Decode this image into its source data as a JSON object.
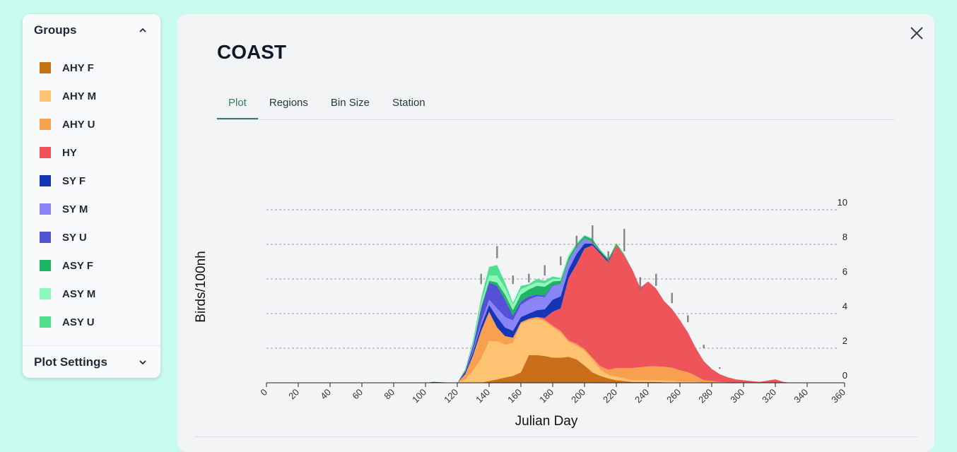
{
  "sidebar": {
    "groups_title": "Groups",
    "plot_settings_label": "Plot Settings",
    "groups": [
      {
        "label": "AHY F",
        "color": "#c96f1a"
      },
      {
        "label": "AHY M",
        "color": "#fec370"
      },
      {
        "label": "AHY U",
        "color": "#f9a050"
      },
      {
        "label": "HY",
        "color": "#ee5459"
      },
      {
        "label": "SY F",
        "color": "#1535b5"
      },
      {
        "label": "SY M",
        "color": "#8a85f5"
      },
      {
        "label": "SY U",
        "color": "#5550d8"
      },
      {
        "label": "ASY F",
        "color": "#1db565"
      },
      {
        "label": "ASY M",
        "color": "#8df8b8"
      },
      {
        "label": "ASY U",
        "color": "#50df8e"
      }
    ]
  },
  "panel": {
    "title": "COAST",
    "tabs": [
      "Plot",
      "Regions",
      "Bin Size",
      "Station"
    ],
    "active_tab": "Plot"
  },
  "chart_data": {
    "type": "area",
    "stacked": true,
    "xlabel": "Julian Day",
    "ylabel": "Birds/100nh",
    "xlim": [
      0,
      360
    ],
    "ylim": [
      0,
      10
    ],
    "x_ticks": [
      0,
      20,
      40,
      60,
      80,
      100,
      120,
      140,
      160,
      180,
      200,
      220,
      240,
      260,
      280,
      300,
      320,
      340,
      360
    ],
    "y_ticks": [
      0,
      2,
      4,
      6,
      8,
      10
    ],
    "grid": true,
    "x": [
      0,
      100,
      105,
      110,
      120,
      125,
      130,
      135,
      140,
      145,
      150,
      155,
      160,
      165,
      170,
      175,
      180,
      185,
      190,
      195,
      200,
      205,
      210,
      215,
      220,
      225,
      230,
      235,
      240,
      245,
      250,
      255,
      260,
      265,
      270,
      275,
      280,
      285,
      290,
      295,
      300,
      310,
      320,
      325,
      330,
      340,
      350,
      360
    ],
    "series": [
      {
        "name": "AHY F",
        "color": "#c96f1a",
        "values": [
          0,
          0,
          0,
          0,
          0,
          0,
          0,
          0,
          0.1,
          0.2,
          0.3,
          0.4,
          0.6,
          1.6,
          1.6,
          1.55,
          1.45,
          1.45,
          1.5,
          1.35,
          1.0,
          0.6,
          0.4,
          0.25,
          0.15,
          0.1,
          0.05,
          0.05,
          0.05,
          0.05,
          0.03,
          0.02,
          0.02,
          0.01,
          0,
          0,
          0,
          0,
          0,
          0,
          0,
          0,
          0,
          0,
          0,
          0,
          0,
          0
        ]
      },
      {
        "name": "AHY M",
        "color": "#fec370",
        "values": [
          0,
          0,
          0,
          0,
          0,
          0.2,
          0.7,
          1.4,
          2.3,
          2.2,
          1.9,
          1.9,
          2.8,
          2.0,
          2.1,
          2.0,
          1.75,
          1.45,
          0.85,
          0.8,
          0.85,
          0.75,
          0.35,
          0.2,
          0.2,
          0.15,
          0.1,
          0.1,
          0.1,
          0.1,
          0.1,
          0.1,
          0.05,
          0.05,
          0.05,
          0,
          0,
          0,
          0,
          0,
          0,
          0,
          0,
          0,
          0,
          0,
          0,
          0
        ]
      },
      {
        "name": "AHY U",
        "color": "#f9a050",
        "values": [
          0,
          0,
          0,
          0,
          0,
          0.3,
          0.9,
          1.6,
          1.7,
          0.8,
          0.5,
          0.3,
          0.1,
          0.1,
          0.1,
          0.1,
          0.1,
          0.1,
          0.1,
          0.1,
          0.1,
          0.1,
          0.2,
          0.3,
          0.5,
          0.6,
          0.7,
          0.75,
          0.8,
          0.8,
          0.8,
          0.75,
          0.65,
          0.55,
          0.35,
          0.15,
          0.1,
          0.05,
          0.02,
          0,
          0,
          0,
          0,
          0,
          0,
          0,
          0,
          0
        ]
      },
      {
        "name": "HY",
        "color": "#ee5459",
        "values": [
          0,
          0,
          0,
          0,
          0,
          0,
          0,
          0,
          0,
          0,
          0,
          0,
          0,
          0,
          0,
          0.1,
          0.8,
          1.3,
          3.6,
          4.6,
          5.8,
          6.5,
          6.5,
          6.2,
          7.1,
          6.5,
          5.7,
          4.6,
          4.9,
          4.5,
          3.8,
          3.4,
          2.9,
          2.3,
          1.6,
          1.1,
          0.7,
          0.45,
          0.3,
          0.2,
          0.15,
          0.05,
          0.2,
          0.05,
          0,
          0,
          0,
          0
        ]
      },
      {
        "name": "SY F",
        "color": "#1535b5",
        "values": [
          0,
          0,
          0.05,
          0.03,
          0,
          0.1,
          0.2,
          0.3,
          0.4,
          0.6,
          0.5,
          0.4,
          0.3,
          0.3,
          0.4,
          0.5,
          0.7,
          0.7,
          0.5,
          0.6,
          0.3,
          0.1,
          0.1,
          0.1,
          0,
          0,
          0,
          0,
          0,
          0,
          0,
          0,
          0,
          0,
          0,
          0,
          0,
          0,
          0,
          0,
          0,
          0,
          0,
          0,
          0,
          0,
          0,
          0
        ]
      },
      {
        "name": "SY M",
        "color": "#8a85f5",
        "values": [
          0,
          0,
          0,
          0,
          0,
          0,
          0.1,
          0.2,
          0.3,
          0.5,
          0.6,
          0.6,
          0.7,
          0.8,
          0.8,
          0.7,
          0.8,
          0.7,
          0.5,
          0.4,
          0.3,
          0.1,
          0,
          0,
          0,
          0,
          0,
          0,
          0,
          0,
          0,
          0,
          0,
          0,
          0,
          0,
          0,
          0,
          0,
          0,
          0,
          0,
          0,
          0,
          0,
          0,
          0,
          0
        ]
      },
      {
        "name": "SY U",
        "color": "#5550d8",
        "values": [
          0,
          0,
          0,
          0,
          0,
          0.1,
          0.3,
          0.8,
          1.0,
          1.3,
          1.0,
          0.3,
          0.2,
          0.2,
          0.1,
          0.1,
          0.05,
          0,
          0,
          0,
          0,
          0,
          0,
          0,
          0,
          0,
          0,
          0,
          0,
          0,
          0,
          0,
          0,
          0,
          0,
          0,
          0,
          0,
          0,
          0,
          0,
          0,
          0,
          0,
          0,
          0,
          0,
          0
        ]
      },
      {
        "name": "ASY F",
        "color": "#1db565",
        "values": [
          0,
          0,
          0,
          0,
          0,
          0,
          0,
          0.1,
          0.1,
          0.2,
          0.3,
          0.3,
          0.4,
          0.4,
          0.5,
          0.5,
          0.2,
          0.2,
          0.2,
          0.15,
          0.15,
          0.15,
          0.1,
          0.1,
          0.1,
          0.05,
          0,
          0,
          0,
          0,
          0,
          0,
          0,
          0,
          0,
          0,
          0,
          0,
          0,
          0,
          0,
          0,
          0,
          0,
          0,
          0,
          0,
          0
        ]
      },
      {
        "name": "ASY M",
        "color": "#8df8b8",
        "values": [
          0,
          0,
          0,
          0,
          0,
          0.05,
          0.1,
          0.2,
          0.3,
          0.4,
          0.4,
          0.3,
          0.3,
          0.2,
          0.2,
          0.2,
          0.15,
          0.1,
          0.1,
          0.1,
          0.05,
          0.05,
          0.05,
          0.05,
          0.05,
          0.05,
          0,
          0,
          0,
          0,
          0,
          0,
          0,
          0,
          0,
          0,
          0,
          0,
          0,
          0,
          0,
          0,
          0,
          0,
          0,
          0,
          0,
          0
        ]
      },
      {
        "name": "ASY U",
        "color": "#50df8e",
        "values": [
          0,
          0,
          0,
          0,
          0,
          0.05,
          0.2,
          0.3,
          0.5,
          0.6,
          0.3,
          0.1,
          0.2,
          0.1,
          0.2,
          0.15,
          0.15,
          0.05,
          0.05,
          0,
          0,
          0,
          0,
          0,
          0,
          0,
          0,
          0,
          0,
          0,
          0,
          0,
          0,
          0,
          0,
          0,
          0,
          0,
          0,
          0,
          0,
          0,
          0,
          0,
          0,
          0,
          0,
          0
        ]
      }
    ],
    "error_bars": [
      {
        "x": 135,
        "low": 5.7,
        "high": 6.3
      },
      {
        "x": 145,
        "low": 7.2,
        "high": 7.9
      },
      {
        "x": 155,
        "low": 5.7,
        "high": 6.2
      },
      {
        "x": 165,
        "low": 5.8,
        "high": 6.3
      },
      {
        "x": 175,
        "low": 6.2,
        "high": 6.8
      },
      {
        "x": 185,
        "low": 6.8,
        "high": 7.3
      },
      {
        "x": 195,
        "low": 7.8,
        "high": 8.5
      },
      {
        "x": 205,
        "low": 8.0,
        "high": 9.1
      },
      {
        "x": 215,
        "low": 6.9,
        "high": 7.6
      },
      {
        "x": 225,
        "low": 7.6,
        "high": 8.9
      },
      {
        "x": 235,
        "low": 5.3,
        "high": 6.1
      },
      {
        "x": 245,
        "low": 5.6,
        "high": 6.3
      },
      {
        "x": 255,
        "low": 4.6,
        "high": 5.2
      },
      {
        "x": 265,
        "low": 3.5,
        "high": 3.9
      },
      {
        "x": 275,
        "low": 2.0,
        "high": 2.2
      },
      {
        "x": 285,
        "low": 0.8,
        "high": 0.9
      }
    ]
  }
}
